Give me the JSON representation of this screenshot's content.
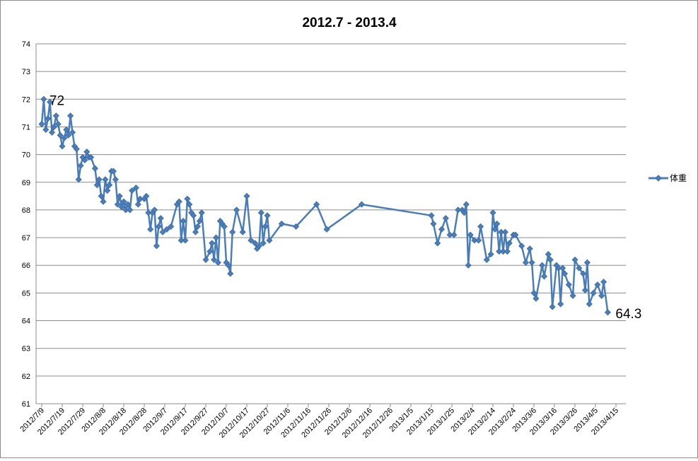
{
  "chart_data": {
    "type": "line",
    "title": "2012.7 -  2013.4",
    "xlabel": "",
    "ylabel": "",
    "ylim": [
      61,
      74
    ],
    "yticks": [
      61,
      62,
      63,
      64,
      65,
      66,
      67,
      68,
      69,
      70,
      71,
      72,
      73,
      74
    ],
    "xlim": [
      "2012-07-09",
      "2013-04-15"
    ],
    "xtick_labels": [
      "2012/7/9",
      "2012/7/19",
      "2012/7/29",
      "2012/8/8",
      "2012/8/18",
      "2012/8/28",
      "2012/9/7",
      "2012/9/17",
      "2012/9/27",
      "2012/10/7",
      "2012/10/17",
      "2012/10/27",
      "2012/11/6",
      "2012/11/16",
      "2012/11/26",
      "2012/12/6",
      "2012/12/16",
      "2012/12/26",
      "2013/1/5",
      "2013/1/15",
      "2013/1/25",
      "2013/2/4",
      "2013/2/14",
      "2013/2/24",
      "2013/3/6",
      "2013/3/16",
      "2013/3/26",
      "2013/4/5",
      "2013/4/15"
    ],
    "grid": true,
    "legend_position": "right",
    "series": [
      {
        "name": "体重",
        "color": "#4a7ebb",
        "marker": "diamond",
        "points": [
          [
            "2012-07-09",
            71.1
          ],
          [
            "2012-07-10",
            72.0
          ],
          [
            "2012-07-11",
            70.9
          ],
          [
            "2012-07-12",
            71.3
          ],
          [
            "2012-07-13",
            71.9
          ],
          [
            "2012-07-14",
            70.8
          ],
          [
            "2012-07-15",
            71.0
          ],
          [
            "2012-07-16",
            71.4
          ],
          [
            "2012-07-17",
            71.1
          ],
          [
            "2012-07-18",
            70.7
          ],
          [
            "2012-07-19",
            70.3
          ],
          [
            "2012-07-20",
            70.6
          ],
          [
            "2012-07-21",
            70.9
          ],
          [
            "2012-07-22",
            70.7
          ],
          [
            "2012-07-23",
            71.4
          ],
          [
            "2012-07-24",
            70.8
          ],
          [
            "2012-07-25",
            70.3
          ],
          [
            "2012-07-26",
            70.2
          ],
          [
            "2012-07-27",
            69.1
          ],
          [
            "2012-07-28",
            69.6
          ],
          [
            "2012-07-29",
            69.9
          ],
          [
            "2012-07-30",
            69.8
          ],
          [
            "2012-07-31",
            70.1
          ],
          [
            "2012-08-01",
            69.9
          ],
          [
            "2012-08-02",
            69.9
          ],
          [
            "2012-08-04",
            69.5
          ],
          [
            "2012-08-05",
            68.9
          ],
          [
            "2012-08-06",
            69.1
          ],
          [
            "2012-08-07",
            68.5
          ],
          [
            "2012-08-08",
            68.3
          ],
          [
            "2012-08-09",
            69.1
          ],
          [
            "2012-08-10",
            68.7
          ],
          [
            "2012-08-11",
            68.9
          ],
          [
            "2012-08-12",
            69.4
          ],
          [
            "2012-08-13",
            69.4
          ],
          [
            "2012-08-14",
            69.1
          ],
          [
            "2012-08-15",
            68.2
          ],
          [
            "2012-08-16",
            68.5
          ],
          [
            "2012-08-17",
            68.1
          ],
          [
            "2012-08-18",
            68.3
          ],
          [
            "2012-08-19",
            68.0
          ],
          [
            "2012-08-20",
            68.2
          ],
          [
            "2012-08-21",
            68.0
          ],
          [
            "2012-08-22",
            68.7
          ],
          [
            "2012-08-24",
            68.8
          ],
          [
            "2012-08-25",
            68.2
          ],
          [
            "2012-08-26",
            68.4
          ],
          [
            "2012-08-28",
            68.4
          ],
          [
            "2012-08-29",
            68.5
          ],
          [
            "2012-08-30",
            67.9
          ],
          [
            "2012-08-31",
            67.3
          ],
          [
            "2012-09-01",
            67.9
          ],
          [
            "2012-09-02",
            68.0
          ],
          [
            "2012-09-03",
            66.7
          ],
          [
            "2012-09-04",
            67.4
          ],
          [
            "2012-09-05",
            67.7
          ],
          [
            "2012-09-06",
            67.2
          ],
          [
            "2012-09-08",
            67.3
          ],
          [
            "2012-09-10",
            67.4
          ],
          [
            "2012-09-13",
            68.2
          ],
          [
            "2012-09-14",
            68.3
          ],
          [
            "2012-09-15",
            66.9
          ],
          [
            "2012-09-16",
            67.6
          ],
          [
            "2012-09-17",
            66.9
          ],
          [
            "2012-09-18",
            68.4
          ],
          [
            "2012-09-19",
            68.2
          ],
          [
            "2012-09-20",
            67.9
          ],
          [
            "2012-09-21",
            67.8
          ],
          [
            "2012-09-22",
            67.2
          ],
          [
            "2012-09-23",
            67.4
          ],
          [
            "2012-09-24",
            67.6
          ],
          [
            "2012-09-25",
            67.9
          ],
          [
            "2012-09-27",
            66.2
          ],
          [
            "2012-09-29",
            66.5
          ],
          [
            "2012-09-30",
            66.8
          ],
          [
            "2012-10-01",
            66.2
          ],
          [
            "2012-10-02",
            67.0
          ],
          [
            "2012-10-03",
            66.1
          ],
          [
            "2012-10-04",
            67.6
          ],
          [
            "2012-10-05",
            67.5
          ],
          [
            "2012-10-06",
            67.4
          ],
          [
            "2012-10-07",
            66.1
          ],
          [
            "2012-10-08",
            66.0
          ],
          [
            "2012-10-09",
            65.7
          ],
          [
            "2012-10-10",
            67.2
          ],
          [
            "2012-10-12",
            68.0
          ],
          [
            "2012-10-15",
            67.2
          ],
          [
            "2012-10-17",
            68.5
          ],
          [
            "2012-10-19",
            66.9
          ],
          [
            "2012-10-21",
            66.8
          ],
          [
            "2012-10-22",
            66.6
          ],
          [
            "2012-10-23",
            66.7
          ],
          [
            "2012-10-24",
            67.9
          ],
          [
            "2012-10-25",
            66.8
          ],
          [
            "2012-10-26",
            67.4
          ],
          [
            "2012-10-27",
            67.8
          ],
          [
            "2012-10-28",
            66.9
          ],
          [
            "2012-11-03",
            67.5
          ],
          [
            "2012-11-10",
            67.4
          ],
          [
            "2012-11-20",
            68.2
          ],
          [
            "2012-11-25",
            67.3
          ],
          [
            "2012-12-12",
            68.2
          ],
          [
            "2013-01-15",
            67.8
          ],
          [
            "2013-01-16",
            67.5
          ],
          [
            "2013-01-18",
            66.8
          ],
          [
            "2013-01-20",
            67.3
          ],
          [
            "2013-01-22",
            67.7
          ],
          [
            "2013-01-24",
            67.1
          ],
          [
            "2013-01-26",
            67.1
          ],
          [
            "2013-01-28",
            68.0
          ],
          [
            "2013-01-30",
            68.0
          ],
          [
            "2013-01-31",
            67.9
          ],
          [
            "2013-02-01",
            68.2
          ],
          [
            "2013-02-02",
            66.0
          ],
          [
            "2013-02-03",
            67.1
          ],
          [
            "2013-02-05",
            66.9
          ],
          [
            "2013-02-07",
            66.9
          ],
          [
            "2013-02-08",
            67.4
          ],
          [
            "2013-02-11",
            66.2
          ],
          [
            "2013-02-13",
            66.4
          ],
          [
            "2013-02-14",
            67.9
          ],
          [
            "2013-02-15",
            67.3
          ],
          [
            "2013-02-16",
            67.5
          ],
          [
            "2013-02-17",
            66.5
          ],
          [
            "2013-02-18",
            67.2
          ],
          [
            "2013-02-19",
            66.5
          ],
          [
            "2013-02-20",
            67.2
          ],
          [
            "2013-02-21",
            66.5
          ],
          [
            "2013-02-22",
            66.8
          ],
          [
            "2013-02-24",
            67.1
          ],
          [
            "2013-02-25",
            67.1
          ],
          [
            "2013-02-28",
            66.7
          ],
          [
            "2013-03-02",
            66.1
          ],
          [
            "2013-03-04",
            66.6
          ],
          [
            "2013-03-05",
            66.1
          ],
          [
            "2013-03-06",
            65.0
          ],
          [
            "2013-03-07",
            64.8
          ],
          [
            "2013-03-10",
            66.0
          ],
          [
            "2013-03-11",
            65.6
          ],
          [
            "2013-03-13",
            66.4
          ],
          [
            "2013-03-14",
            66.2
          ],
          [
            "2013-03-15",
            64.5
          ],
          [
            "2013-03-17",
            66.0
          ],
          [
            "2013-03-18",
            65.9
          ],
          [
            "2013-03-19",
            64.6
          ],
          [
            "2013-03-20",
            65.9
          ],
          [
            "2013-03-21",
            65.7
          ],
          [
            "2013-03-23",
            65.3
          ],
          [
            "2013-03-25",
            64.9
          ],
          [
            "2013-03-26",
            66.2
          ],
          [
            "2013-03-28",
            65.9
          ],
          [
            "2013-03-30",
            65.7
          ],
          [
            "2013-03-31",
            65.1
          ],
          [
            "2013-04-01",
            66.1
          ],
          [
            "2013-04-02",
            64.6
          ],
          [
            "2013-04-04",
            65.0
          ],
          [
            "2013-04-06",
            65.3
          ],
          [
            "2013-04-08",
            64.9
          ],
          [
            "2013-04-09",
            65.4
          ],
          [
            "2013-04-11",
            64.3
          ]
        ]
      }
    ],
    "annotations": [
      {
        "text": "72",
        "x": "2012-07-10",
        "y": 72.0
      },
      {
        "text": "64.3",
        "x": "2013-04-11",
        "y": 64.3
      }
    ]
  }
}
